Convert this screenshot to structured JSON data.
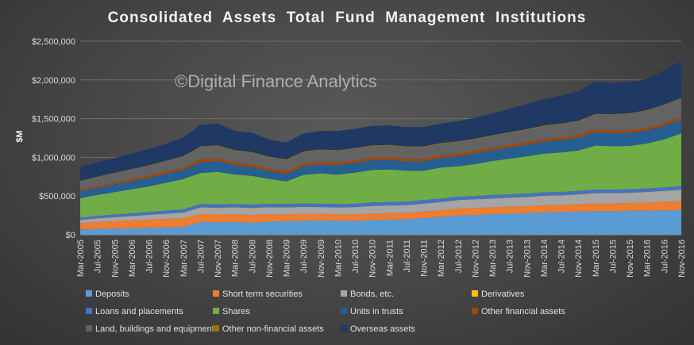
{
  "chart_data": {
    "type": "area",
    "stacked": true,
    "title": "Consolidated  Assets  Total  Fund  Management  Institutions",
    "watermark": "©Digital Finance Analytics",
    "ylabel": "$M",
    "ylim": [
      0,
      2500000
    ],
    "yticks": [
      0,
      500000,
      1000000,
      1500000,
      2000000,
      2500000
    ],
    "ytick_labels": [
      "$0",
      "$500,000",
      "$1,000,000",
      "$1,500,000",
      "$2,000,000",
      "$2,500,000"
    ],
    "grid": true,
    "legend_position": "bottom",
    "x": [
      "Mar-2005",
      "Jul-2005",
      "Nov-2005",
      "Mar-2006",
      "Jul-2006",
      "Nov-2006",
      "Mar-2007",
      "Jul-2007",
      "Nov-2007",
      "Mar-2008",
      "Jul-2008",
      "Nov-2008",
      "Mar-2009",
      "Jul-2009",
      "Nov-2009",
      "Mar-2010",
      "Jul-2010",
      "Nov-2010",
      "Mar-2011",
      "Jul-2011",
      "Nov-2011",
      "Mar-2012",
      "Jul-2012",
      "Nov-2012",
      "Mar-2013",
      "Jul-2013",
      "Nov-2013",
      "Mar-2014",
      "Jul-2014",
      "Nov-2014",
      "Mar-2015",
      "Jul-2015",
      "Nov-2015",
      "Mar-2016",
      "Jul-2016",
      "Nov-2016"
    ],
    "series": [
      {
        "name": "Deposits",
        "color": "#5b9bd5",
        "values": [
          70000,
          75000,
          80000,
          85000,
          90000,
          95000,
          100000,
          165000,
          160000,
          165000,
          155000,
          170000,
          175000,
          180000,
          185000,
          180000,
          180000,
          190000,
          195000,
          200000,
          215000,
          230000,
          250000,
          255000,
          265000,
          275000,
          280000,
          290000,
          295000,
          300000,
          305000,
          305000,
          310000,
          310000,
          315000,
          320000
        ]
      },
      {
        "name": "Short term securities",
        "color": "#ed7d31",
        "values": [
          80000,
          90000,
          95000,
          100000,
          105000,
          110000,
          115000,
          100000,
          100000,
          100000,
          100000,
          95000,
          90000,
          90000,
          85000,
          85000,
          85000,
          85000,
          85000,
          85000,
          85000,
          85000,
          90000,
          90000,
          90000,
          90000,
          90000,
          90000,
          90000,
          95000,
          100000,
          100000,
          100000,
          105000,
          110000,
          115000
        ]
      },
      {
        "name": "Bonds, etc.",
        "color": "#a5a5a5",
        "values": [
          40000,
          45000,
          50000,
          55000,
          60000,
          65000,
          70000,
          85000,
          85000,
          85000,
          85000,
          85000,
          85000,
          85000,
          85000,
          85000,
          90000,
          95000,
          95000,
          95000,
          100000,
          105000,
          105000,
          110000,
          110000,
          110000,
          115000,
          120000,
          120000,
          125000,
          130000,
          130000,
          130000,
          135000,
          140000,
          145000
        ]
      },
      {
        "name": "Derivatives",
        "color": "#ffc000",
        "values": [
          2000,
          2000,
          2000,
          2000,
          2000,
          2000,
          2000,
          3000,
          3000,
          4000,
          5000,
          6000,
          5000,
          4000,
          3000,
          3000,
          3000,
          3000,
          3000,
          3000,
          3000,
          3000,
          3000,
          3000,
          3000,
          3000,
          3000,
          3000,
          3000,
          3000,
          3000,
          3000,
          3000,
          3000,
          3000,
          3000
        ]
      },
      {
        "name": "Loans and placements",
        "color": "#4472c4",
        "values": [
          30000,
          32000,
          34000,
          36000,
          38000,
          40000,
          42000,
          45000,
          45000,
          45000,
          45000,
          45000,
          45000,
          45000,
          45000,
          45000,
          45000,
          45000,
          45000,
          45000,
          45000,
          45000,
          45000,
          45000,
          45000,
          45000,
          45000,
          45000,
          45000,
          45000,
          45000,
          45000,
          45000,
          45000,
          45000,
          45000
        ]
      },
      {
        "name": "Shares",
        "color": "#70ad47",
        "values": [
          250000,
          270000,
          290000,
          310000,
          330000,
          360000,
          390000,
          400000,
          420000,
          380000,
          370000,
          320000,
          290000,
          370000,
          390000,
          380000,
          400000,
          420000,
          420000,
          400000,
          380000,
          400000,
          390000,
          410000,
          440000,
          460000,
          480000,
          500000,
          510000,
          520000,
          570000,
          560000,
          560000,
          580000,
          620000,
          680000
        ]
      },
      {
        "name": "Units in trusts",
        "color": "#255e91",
        "values": [
          90000,
          95000,
          100000,
          105000,
          110000,
          115000,
          120000,
          140000,
          140000,
          120000,
          115000,
          100000,
          95000,
          110000,
          115000,
          120000,
          125000,
          125000,
          125000,
          120000,
          120000,
          125000,
          130000,
          135000,
          140000,
          145000,
          150000,
          155000,
          160000,
          165000,
          170000,
          170000,
          170000,
          170000,
          175000,
          180000
        ]
      },
      {
        "name": "Other financial assets",
        "color": "#9e480e",
        "values": [
          20000,
          22000,
          24000,
          26000,
          28000,
          30000,
          32000,
          35000,
          35000,
          35000,
          35000,
          35000,
          35000,
          35000,
          35000,
          35000,
          35000,
          35000,
          35000,
          35000,
          35000,
          35000,
          35000,
          35000,
          35000,
          35000,
          35000,
          35000,
          35000,
          35000,
          35000,
          35000,
          35000,
          35000,
          35000,
          35000
        ]
      },
      {
        "name": "Land, buildings and equipment",
        "color": "#636363",
        "values": [
          110000,
          115000,
          120000,
          125000,
          130000,
          135000,
          140000,
          160000,
          160000,
          150000,
          150000,
          145000,
          145000,
          150000,
          150000,
          150000,
          150000,
          150000,
          150000,
          150000,
          150000,
          150000,
          150000,
          150000,
          150000,
          155000,
          160000,
          165000,
          170000,
          175000,
          195000,
          200000,
          210000,
          220000,
          230000,
          240000
        ]
      },
      {
        "name": "Other non-financial assets",
        "color": "#997300",
        "values": [
          5000,
          5000,
          5000,
          5000,
          5000,
          5000,
          5000,
          8000,
          8000,
          8000,
          8000,
          8000,
          8000,
          8000,
          8000,
          8000,
          8000,
          8000,
          8000,
          8000,
          8000,
          8000,
          8000,
          8000,
          8000,
          8000,
          8000,
          8000,
          8000,
          8000,
          8000,
          8000,
          8000,
          8000,
          8000,
          8000
        ]
      },
      {
        "name": "Overseas assets",
        "color": "#1f3864",
        "values": [
          180000,
          185000,
          190000,
          200000,
          210000,
          220000,
          240000,
          280000,
          280000,
          250000,
          250000,
          220000,
          220000,
          230000,
          240000,
          250000,
          250000,
          250000,
          250000,
          250000,
          250000,
          250000,
          260000,
          270000,
          280000,
          300000,
          320000,
          340000,
          360000,
          380000,
          420000,
          400000,
          400000,
          400000,
          440000,
          480000
        ]
      }
    ]
  }
}
